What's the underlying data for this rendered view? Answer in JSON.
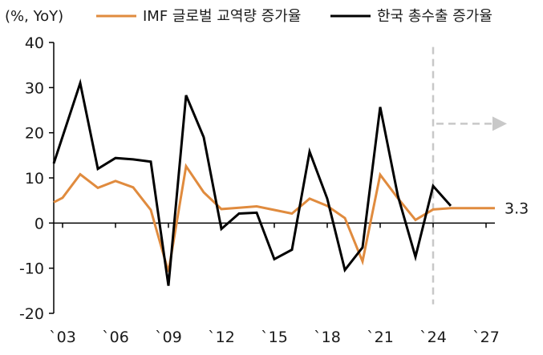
{
  "chart_data": {
    "type": "line",
    "unit_label": "(%, YoY)",
    "xlabel": "",
    "ylabel": "",
    "ylim": [
      -20,
      40
    ],
    "y_ticks": [
      40,
      30,
      20,
      10,
      0,
      -10,
      -20
    ],
    "x_ticks": [
      {
        "year": 2003,
        "label": "`03"
      },
      {
        "year": 2006,
        "label": "`06"
      },
      {
        "year": 2009,
        "label": "`09"
      },
      {
        "year": 2012,
        "label": "`12"
      },
      {
        "year": 2015,
        "label": "`15"
      },
      {
        "year": 2018,
        "label": "`18"
      },
      {
        "year": 2021,
        "label": "`21"
      },
      {
        "year": 2024,
        "label": "`24"
      },
      {
        "year": 2027,
        "label": "`27"
      }
    ],
    "xlim": [
      2002.5,
      2027.5
    ],
    "grid": false,
    "legend_position": "top",
    "forecast_start_year": 2024,
    "end_label": "3.3",
    "series": [
      {
        "name": "IMF 글로벌 교역량 증가율",
        "color": "#E08B3E",
        "x": [
          2002.5,
          2003,
          2004,
          2005,
          2006,
          2007,
          2008,
          2009,
          2010,
          2011,
          2012,
          2013,
          2014,
          2015,
          2016,
          2017,
          2018,
          2019,
          2020,
          2021,
          2022,
          2023,
          2024,
          2025,
          2026,
          2027,
          2027.5
        ],
        "values": [
          4.6,
          5.6,
          10.8,
          7.8,
          9.3,
          7.9,
          2.9,
          -10.8,
          12.6,
          6.8,
          3.1,
          3.4,
          3.7,
          2.9,
          2.1,
          5.4,
          3.8,
          1.1,
          -8.5,
          10.7,
          5.5,
          0.7,
          3.0,
          3.3,
          3.3,
          3.3,
          3.3
        ]
      },
      {
        "name": "한국 총수출 증가율",
        "color": "#000000",
        "x": [
          2002.5,
          2004,
          2005,
          2006,
          2007,
          2008,
          2009,
          2010,
          2011,
          2012,
          2013,
          2014,
          2015,
          2016,
          2017,
          2018,
          2019,
          2020,
          2021,
          2022,
          2023,
          2024,
          2025
        ],
        "values": [
          13.2,
          31.0,
          12.0,
          14.4,
          14.1,
          13.6,
          -13.9,
          28.3,
          19.0,
          -1.3,
          2.1,
          2.3,
          -8.0,
          -5.9,
          15.8,
          5.4,
          -10.4,
          -5.4,
          25.7,
          6.1,
          -7.5,
          8.2,
          3.8
        ]
      }
    ]
  }
}
